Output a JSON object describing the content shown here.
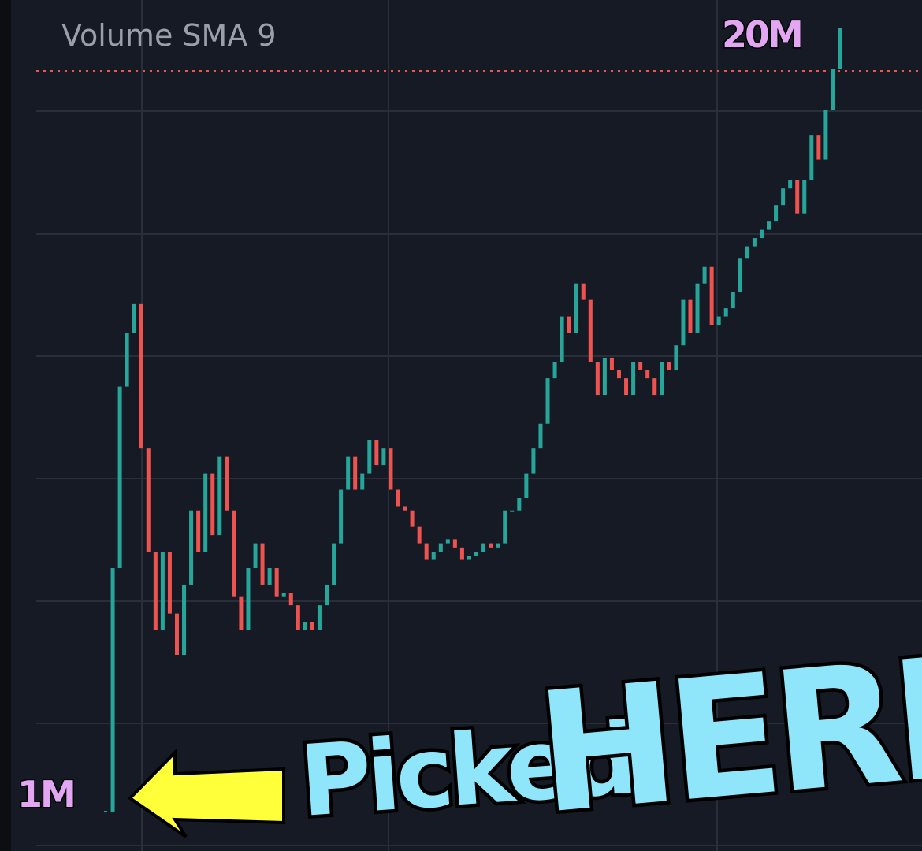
{
  "chart_data": {
    "type": "candlestick",
    "title": "Volume SMA 9",
    "annotations": [
      "20M",
      "1M",
      "Picked",
      "HERE"
    ],
    "up_color": "#26a69a",
    "down_color": "#ef5350",
    "values": [
      1.0,
      6.9,
      11.3,
      12.6,
      13.3,
      9.8,
      7.3,
      5.4,
      7.3,
      5.8,
      4.8,
      6.5,
      8.3,
      7.3,
      9.2,
      7.7,
      9.6,
      8.3,
      6.2,
      5.4,
      6.9,
      7.5,
      6.5,
      6.9,
      6.2,
      6.3,
      6.0,
      5.4,
      5.6,
      5.4,
      6.0,
      6.5,
      7.5,
      8.8,
      9.6,
      8.8,
      9.2,
      10.0,
      9.4,
      9.8,
      8.8,
      8.4,
      8.3,
      7.9,
      7.5,
      7.1,
      7.3,
      7.5,
      7.6,
      7.4,
      7.1,
      7.2,
      7.3,
      7.5,
      7.4,
      7.5,
      8.3,
      8.3,
      8.6,
      9.2,
      9.8,
      10.4,
      11.5,
      11.9,
      13.0,
      12.6,
      13.8,
      13.4,
      11.9,
      11.1,
      12.0,
      11.7,
      11.5,
      11.1,
      11.9,
      11.7,
      11.5,
      11.1,
      11.9,
      11.7,
      12.3,
      13.4,
      12.6,
      13.8,
      14.2,
      12.8,
      13.0,
      13.2,
      13.6,
      14.4,
      14.7,
      14.9,
      15.1,
      15.3,
      15.7,
      16.1,
      16.3,
      15.5,
      16.3,
      17.4,
      16.8,
      18.0,
      19.0,
      20.0
    ]
  }
}
